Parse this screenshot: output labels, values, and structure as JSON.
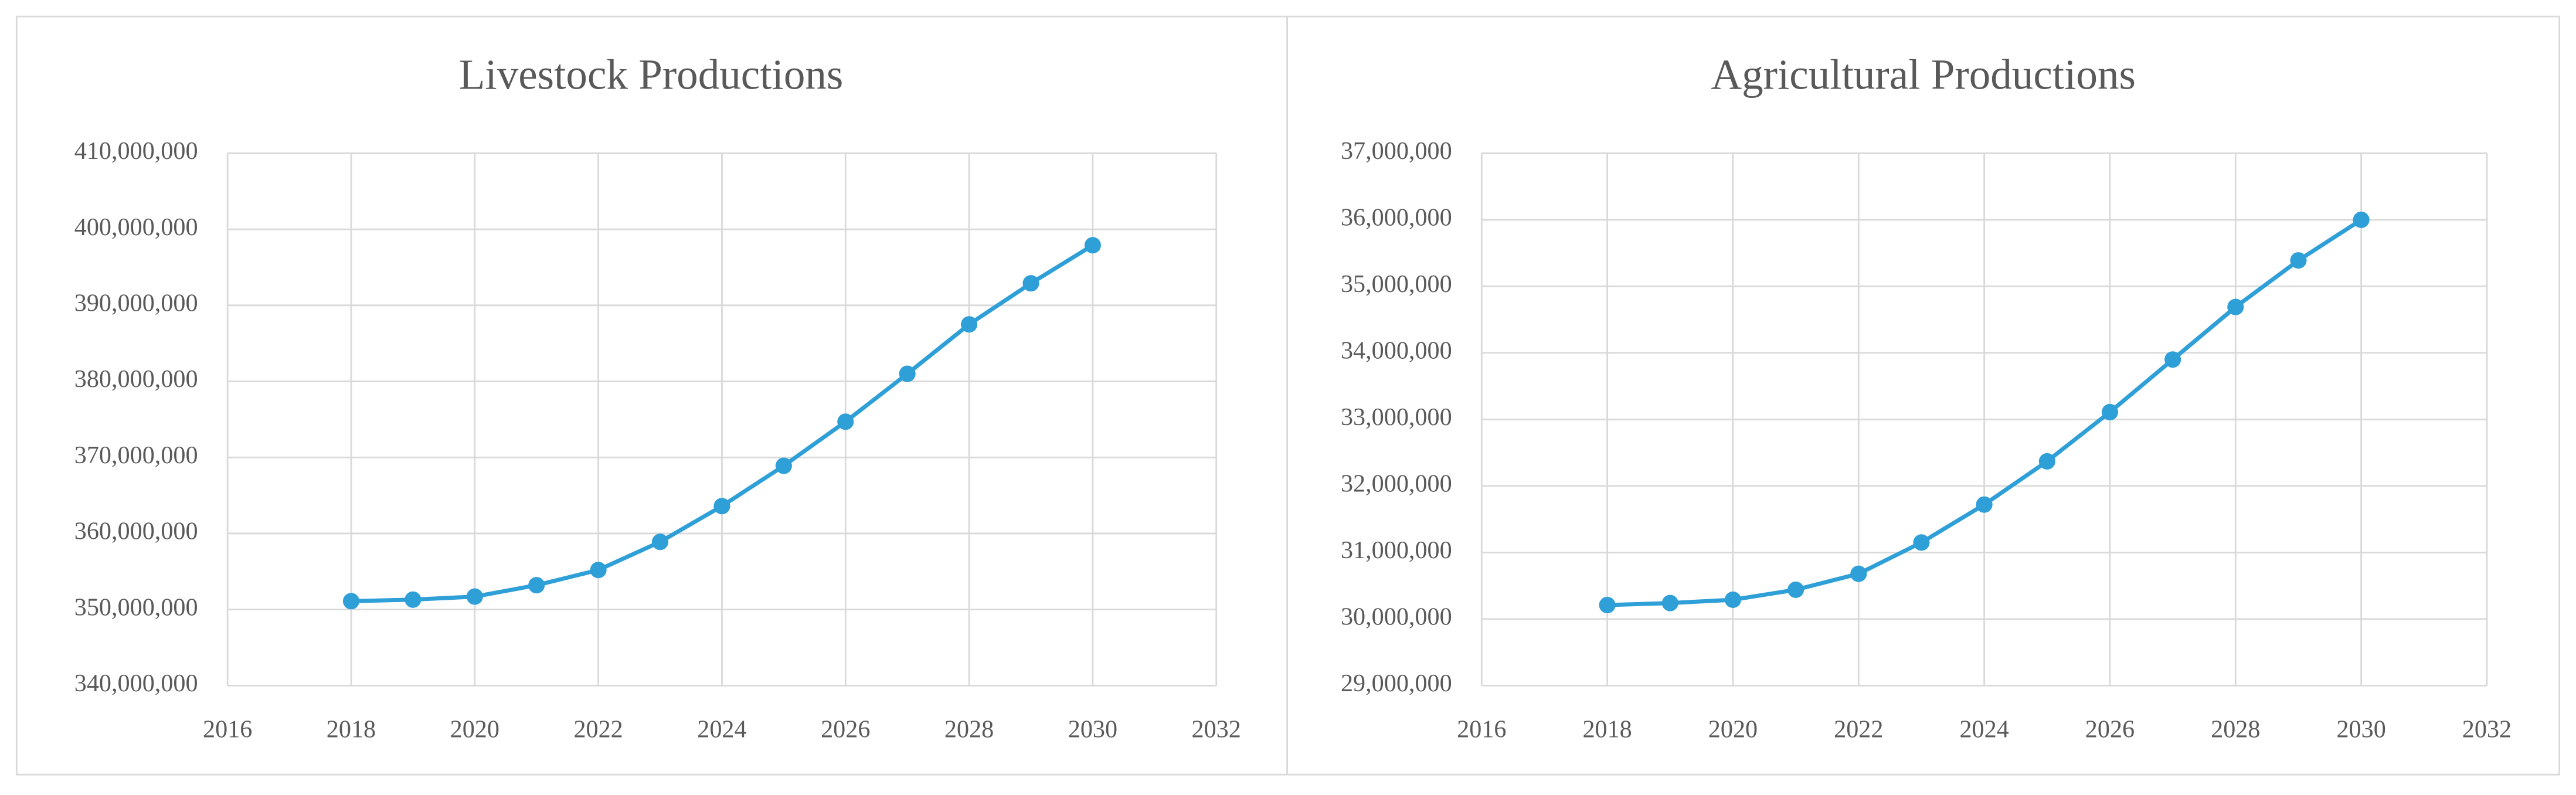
{
  "chart_data": [
    {
      "type": "line",
      "title": "Livestock Productions",
      "x": [
        2018,
        2019,
        2020,
        2021,
        2022,
        2023,
        2024,
        2025,
        2026,
        2027,
        2028,
        2029,
        2030
      ],
      "series": [
        {
          "color": "#2f9fd8",
          "values": [
            351100000,
            351300000,
            351700000,
            353200000,
            355200000,
            358900000,
            363600000,
            368900000,
            374700000,
            381000000,
            387500000,
            392900000,
            397900000
          ]
        }
      ],
      "xlim": [
        2016,
        2032
      ],
      "xticks": [
        2016,
        2018,
        2020,
        2022,
        2024,
        2026,
        2028,
        2030,
        2032
      ],
      "ylim": [
        340000000,
        410000000
      ],
      "yticks": [
        {
          "value": 340000000,
          "label": "340,000,000"
        },
        {
          "value": 350000000,
          "label": "350,000,000"
        },
        {
          "value": 360000000,
          "label": "360,000,000"
        },
        {
          "value": 370000000,
          "label": "370,000,000"
        },
        {
          "value": 380000000,
          "label": "380,000,000"
        },
        {
          "value": 390000000,
          "label": "390,000,000"
        },
        {
          "value": 400000000,
          "label": "400,000,000"
        },
        {
          "value": 410000000,
          "label": "410,000,000"
        }
      ],
      "grid": true
    },
    {
      "type": "line",
      "title": "Agricultural Productions",
      "x": [
        2018,
        2019,
        2020,
        2021,
        2022,
        2023,
        2024,
        2025,
        2026,
        2027,
        2028,
        2029,
        2030
      ],
      "series": [
        {
          "color": "#2f9fd8",
          "values": [
            30210000,
            30240000,
            30290000,
            30440000,
            30680000,
            31150000,
            31720000,
            32370000,
            33110000,
            33900000,
            34690000,
            35390000,
            36000000
          ]
        }
      ],
      "xlim": [
        2016,
        2032
      ],
      "xticks": [
        2016,
        2018,
        2020,
        2022,
        2024,
        2026,
        2028,
        2030,
        2032
      ],
      "ylim": [
        29000000,
        37000000
      ],
      "yticks": [
        {
          "value": 29000000,
          "label": "29,000,000"
        },
        {
          "value": 30000000,
          "label": "30,000,000"
        },
        {
          "value": 31000000,
          "label": "31,000,000"
        },
        {
          "value": 32000000,
          "label": "32,000,000"
        },
        {
          "value": 33000000,
          "label": "33,000,000"
        },
        {
          "value": 34000000,
          "label": "34,000,000"
        },
        {
          "value": 35000000,
          "label": "35,000,000"
        },
        {
          "value": 36000000,
          "label": "36,000,000"
        },
        {
          "value": 37000000,
          "label": "37,000,000"
        }
      ],
      "grid": true
    }
  ]
}
